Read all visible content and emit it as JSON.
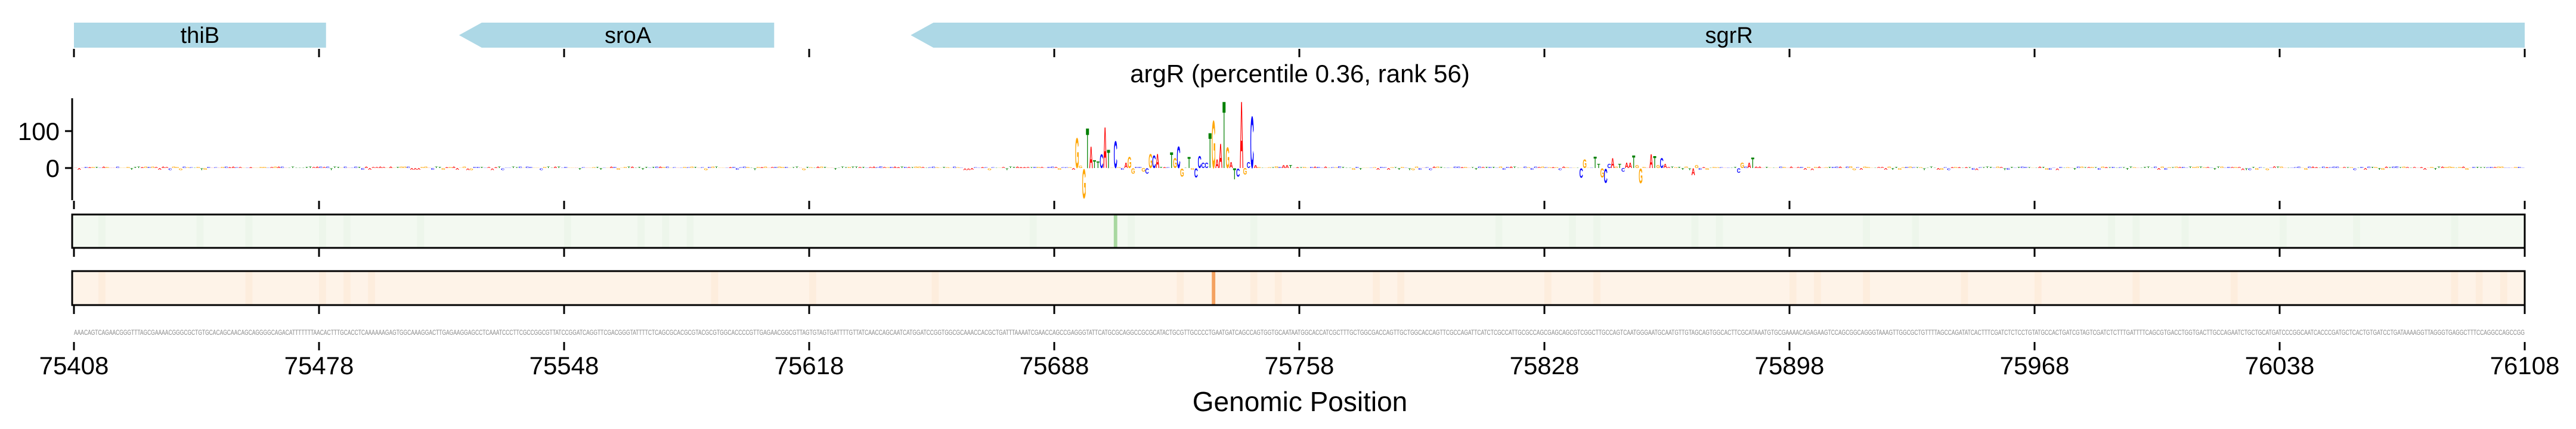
{
  "chart_data": {
    "type": "sequence-logo",
    "title": "argR (percentile 0.36, rank 56)",
    "xlabel": "Genomic Position",
    "xlim": [
      75408,
      76108
    ],
    "xticks": [
      75408,
      75478,
      75548,
      75618,
      75688,
      75758,
      75828,
      75898,
      75968,
      76038,
      76108
    ],
    "xtick_labels": [
      "75408",
      "75478",
      "75548",
      "75618",
      "75688",
      "75758",
      "75828",
      "75898",
      "75968",
      "76038",
      "76108"
    ],
    "ylim": [
      -87,
      189
    ],
    "yticks": [
      0,
      100
    ],
    "ytick_labels": [
      "0",
      "100"
    ],
    "genes": [
      {
        "name": "thiB",
        "start": 75408,
        "end": 75480,
        "strand": "-",
        "arrow": false
      },
      {
        "name": "sroA",
        "start": 75518,
        "end": 75608,
        "strand": "-",
        "arrow": true
      },
      {
        "name": "sgrR",
        "start": 75647,
        "end": 76108,
        "strand": "-",
        "arrow": true
      }
    ],
    "logo_letters": [
      {
        "pos": 286,
        "base": "G",
        "value": 84
      },
      {
        "pos": 287,
        "base": "G",
        "value": 6
      },
      {
        "pos": 288,
        "base": "G",
        "value": -82
      },
      {
        "pos": 289,
        "base": "T",
        "value": 112
      },
      {
        "pos": 290,
        "base": "A",
        "value": 60
      },
      {
        "pos": 291,
        "base": "T",
        "value": 21
      },
      {
        "pos": 292,
        "base": "T",
        "value": 18
      },
      {
        "pos": 293,
        "base": "C",
        "value": 39
      },
      {
        "pos": 294,
        "base": "A",
        "value": 114
      },
      {
        "pos": 295,
        "base": "T",
        "value": 52
      },
      {
        "pos": 297,
        "base": "C",
        "value": 75
      },
      {
        "pos": 300,
        "base": "A",
        "value": 15
      },
      {
        "pos": 301,
        "base": "G",
        "value": 31
      },
      {
        "pos": 302,
        "base": "G",
        "value": -15
      },
      {
        "pos": 305,
        "base": "G",
        "value": -10
      },
      {
        "pos": 306,
        "base": "C",
        "value": -15
      },
      {
        "pos": 307,
        "base": "G",
        "value": 40
      },
      {
        "pos": 308,
        "base": "C",
        "value": 36
      },
      {
        "pos": 309,
        "base": "A",
        "value": 40
      },
      {
        "pos": 313,
        "base": "T",
        "value": 44
      },
      {
        "pos": 314,
        "base": "G",
        "value": 28
      },
      {
        "pos": 315,
        "base": "C",
        "value": 60
      },
      {
        "pos": 316,
        "base": "G",
        "value": -23
      },
      {
        "pos": 318,
        "base": "T",
        "value": 31
      },
      {
        "pos": 319,
        "base": "G",
        "value": -5
      },
      {
        "pos": 320,
        "base": "C",
        "value": -26
      },
      {
        "pos": 321,
        "base": "C",
        "value": 33
      },
      {
        "pos": 322,
        "base": "C",
        "value": 15
      },
      {
        "pos": 323,
        "base": "C",
        "value": 15
      },
      {
        "pos": 324,
        "base": "T",
        "value": 98
      },
      {
        "pos": 325,
        "base": "G",
        "value": 133
      },
      {
        "pos": 326,
        "base": "A",
        "value": 25
      },
      {
        "pos": 327,
        "base": "A",
        "value": 68
      },
      {
        "pos": 328,
        "base": "T",
        "value": 187
      },
      {
        "pos": 329,
        "base": "G",
        "value": 58
      },
      {
        "pos": 330,
        "base": "A",
        "value": 17
      },
      {
        "pos": 331,
        "base": "T",
        "value": -31
      },
      {
        "pos": 332,
        "base": "C",
        "value": -23
      },
      {
        "pos": 333,
        "base": "A",
        "value": 187
      },
      {
        "pos": 334,
        "base": "G",
        "value": -18
      },
      {
        "pos": 335,
        "base": "C",
        "value": 17
      },
      {
        "pos": 336,
        "base": "C",
        "value": 144
      },
      {
        "pos": 337,
        "base": "A",
        "value": 8
      },
      {
        "pos": 345,
        "base": "A",
        "value": 8
      },
      {
        "pos": 346,
        "base": "A",
        "value": 8
      },
      {
        "pos": 347,
        "base": "T",
        "value": 8
      },
      {
        "pos": 430,
        "base": "C",
        "value": -27
      },
      {
        "pos": 431,
        "base": "G",
        "value": 25
      },
      {
        "pos": 434,
        "base": "T",
        "value": 32
      },
      {
        "pos": 435,
        "base": "T",
        "value": 12
      },
      {
        "pos": 436,
        "base": "G",
        "value": -26
      },
      {
        "pos": 437,
        "base": "C",
        "value": -40
      },
      {
        "pos": 438,
        "base": "C",
        "value": 12
      },
      {
        "pos": 439,
        "base": "A",
        "value": 28
      },
      {
        "pos": 441,
        "base": "T",
        "value": 12
      },
      {
        "pos": 442,
        "base": "C",
        "value": -10
      },
      {
        "pos": 443,
        "base": "A",
        "value": 15
      },
      {
        "pos": 444,
        "base": "A",
        "value": 15
      },
      {
        "pos": 445,
        "base": "T",
        "value": 36
      },
      {
        "pos": 446,
        "base": "G",
        "value": 9
      },
      {
        "pos": 447,
        "base": "G",
        "value": -41
      },
      {
        "pos": 450,
        "base": "A",
        "value": 39
      },
      {
        "pos": 451,
        "base": "T",
        "value": 33
      },
      {
        "pos": 452,
        "base": "G",
        "value": 9
      },
      {
        "pos": 453,
        "base": "C",
        "value": 28
      },
      {
        "pos": 454,
        "base": "A",
        "value": 12
      },
      {
        "pos": 462,
        "base": "A",
        "value": -19
      },
      {
        "pos": 463,
        "base": "G",
        "value": 8
      },
      {
        "pos": 475,
        "base": "C",
        "value": -13
      },
      {
        "pos": 476,
        "base": "G",
        "value": 15
      },
      {
        "pos": 478,
        "base": "A",
        "value": 15
      },
      {
        "pos": 479,
        "base": "T",
        "value": 29
      }
    ],
    "base_colors": {
      "A": "#ff0000",
      "C": "#0000ff",
      "G": "#ffa500",
      "T": "#008000"
    },
    "tracks": [
      {
        "name": "green-track",
        "fill": "#f3f9f1",
        "highlight_color": "#a8d8a0",
        "highlight_pos": 297
      },
      {
        "name": "orange-track",
        "fill": "#fef3e8",
        "highlight_color": "#f4a261",
        "highlight_pos": 325
      }
    ],
    "gene_color": "#add8e6",
    "sequence": "AAACAGTCAGAACGGGTTTAGCGAAAACGGGCGCTGTGCACAGCAACAGCAGGGGCAGACATTTTTTTAACACTTTGCACCTCAAAAAAGAGTGGCAAAGGACTTGAGAAGGAGCCTCAAATCCCTTCGCCGGCGTTATCCGGATCAGGTTCGACGGGTATTTTCTCAGCGCACGCGTACGCGTGGCACCCCGTTGAGAACGGCGTTAGTGTAGTGATTTTGTTATCAACCAGCAATCATGGATCCGGTGGCGCAAACCACGCTGATTTAAAATCGAACCAGCCGAGGGTATTCATGCGCAGGCCGCGCATACTGCGTTGCCCCTGAATGATCAGCCAGTGGTGCAATAATGGCACCATCGCTTTGCTGGCGACCAGTTGCTGGCACCAGTTCGCCAGATTCATCTCGCCATTGCGCCAGCGAGCAGCGTCGGCTTGCCAGTCAATGGGAATGCAATGTTGTAGCAGTGGCACTTCGCATAAATGTGCGAAAACAGAGAAGTCCAGCGGCAGGGTAAAGTTGGCGCTGTTTTAGCCAGATATCACTTTCGATCTCTCCTGTATGCCACTGATCGTAGTCGATCTCTTTGATTTTCAGCGTGACCTGGTGACTTGCCAGAATCTGCTGCATGATCCCGGCAATCACCCGATGCTCACTGTGATCCTGATAAAAGGTTAGGGTGAGGCTTTCCAGGCCAGCCGG"
  }
}
